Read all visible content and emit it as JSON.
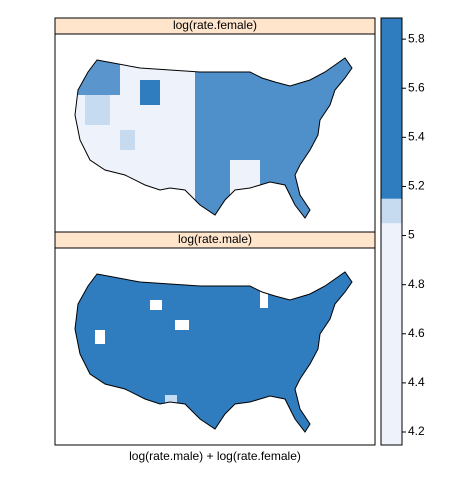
{
  "panels": [
    {
      "strip": "log(rate.female)"
    },
    {
      "strip": "log(rate.male)"
    }
  ],
  "xlabel": "log(rate.male) + log(rate.female)",
  "colorkey": {
    "lim": [
      4.147,
      5.886
    ],
    "ticks": [
      4.2,
      4.4,
      4.6,
      4.8,
      5.0,
      5.2,
      5.4,
      5.6,
      5.8
    ],
    "bands": [
      {
        "from": 4.147,
        "to": 5.05,
        "color": "#eef3fb"
      },
      {
        "from": 5.05,
        "to": 5.15,
        "color": "#c6dbef"
      },
      {
        "from": 5.15,
        "to": 5.886,
        "color": "#2f7cbf"
      }
    ]
  }
}
